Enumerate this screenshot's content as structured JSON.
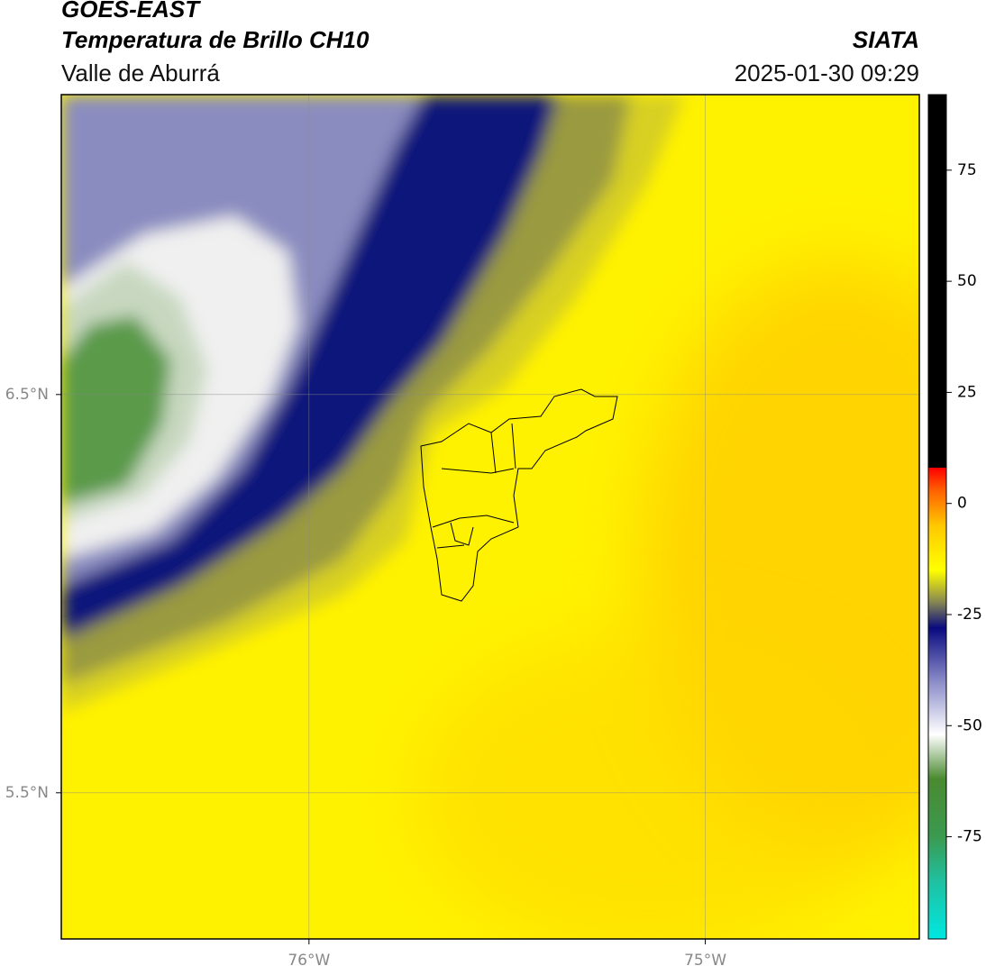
{
  "header": {
    "title": "GOES-EAST",
    "subtitle": "Temperatura de Brillo CH10",
    "source": "SIATA",
    "region": "Valle de Aburrá",
    "timestamp": "2025-01-30 09:29"
  },
  "map": {
    "xlim": [
      -76.625,
      -74.46
    ],
    "ylim": [
      5.133,
      7.253
    ],
    "xticks": [
      {
        "value": -76,
        "label": "76°W"
      },
      {
        "value": -75,
        "label": "75°W"
      }
    ],
    "yticks": [
      {
        "value": 6.5,
        "label": "6.5°N"
      },
      {
        "value": 5.5,
        "label": "5.5°N"
      }
    ],
    "grid": true
  },
  "colorbar": {
    "lim": [
      -98,
      92
    ],
    "ticks": [
      75,
      50,
      25,
      0,
      -25,
      -50,
      -75
    ],
    "stops": [
      {
        "value": -98,
        "color": "#00e8e0"
      },
      {
        "value": -85,
        "color": "#20c0a0"
      },
      {
        "value": -75,
        "color": "#3a9a50"
      },
      {
        "value": -62,
        "color": "#4a8a30"
      },
      {
        "value": -52,
        "color": "#ffffff"
      },
      {
        "value": -40,
        "color": "#8a8cc8"
      },
      {
        "value": -28,
        "color": "#0a0a80"
      },
      {
        "value": -22,
        "color": "#8a8a50"
      },
      {
        "value": -15,
        "color": "#ffff00"
      },
      {
        "value": -5,
        "color": "#ffc800"
      },
      {
        "value": 3,
        "color": "#ff6000"
      },
      {
        "value": 8,
        "color": "#ff0000"
      },
      {
        "value": 8.01,
        "color": "#000000"
      },
      {
        "value": 92,
        "color": "#000000"
      }
    ]
  }
}
